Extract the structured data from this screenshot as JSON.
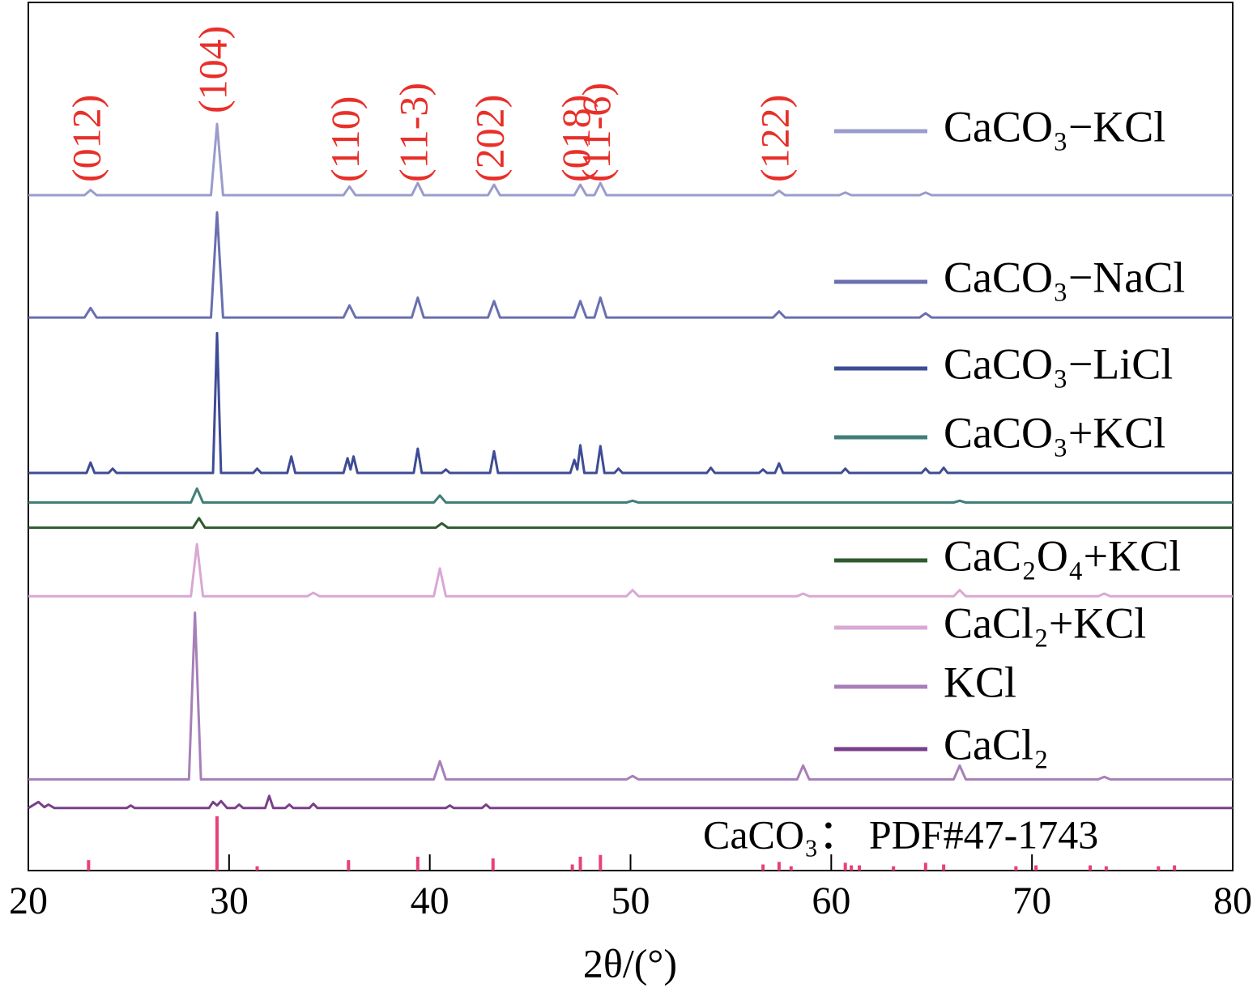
{
  "chart_data": {
    "type": "line",
    "x_label": "2θ/(°)",
    "xlim": [
      20,
      80
    ],
    "xticks": [
      20,
      30,
      40,
      50,
      60,
      70,
      80
    ],
    "ylim": [
      0,
      100
    ],
    "series": [
      {
        "name": "CaCO₃−KCl",
        "color": "#9a9ccc",
        "x": [
          20,
          22.8,
          23.1,
          23.4,
          29.1,
          29.4,
          29.7,
          35.7,
          36.0,
          36.3,
          39.1,
          39.4,
          39.7,
          42.9,
          43.2,
          43.5,
          47.2,
          47.5,
          47.8,
          48.2,
          48.5,
          48.8,
          57.1,
          57.4,
          57.7,
          60.4,
          60.7,
          61.0,
          64.4,
          64.7,
          65.0,
          80
        ],
        "values": [
          77.8,
          77.8,
          78.4,
          77.8,
          77.8,
          86.0,
          77.8,
          77.8,
          78.8,
          77.8,
          77.8,
          79.2,
          77.8,
          77.8,
          79.0,
          77.8,
          77.8,
          79.0,
          77.8,
          77.8,
          79.2,
          77.8,
          77.8,
          78.3,
          77.8,
          77.8,
          78.1,
          77.8,
          77.8,
          78.1,
          77.8,
          77.8
        ]
      },
      {
        "name": "CaCO₃−NaCl",
        "color": "#6a6fb0",
        "x": [
          20,
          22.8,
          23.1,
          23.4,
          29.1,
          29.4,
          29.7,
          35.7,
          36.0,
          36.3,
          39.1,
          39.4,
          39.7,
          42.9,
          43.2,
          43.5,
          47.2,
          47.5,
          47.8,
          48.2,
          48.5,
          48.8,
          57.1,
          57.4,
          57.7,
          64.4,
          64.7,
          65.0,
          80
        ],
        "values": [
          63.7,
          63.7,
          64.8,
          63.7,
          63.7,
          75.8,
          63.7,
          63.7,
          65.1,
          63.7,
          63.7,
          66.0,
          63.7,
          63.7,
          65.6,
          63.7,
          63.7,
          65.6,
          63.7,
          63.7,
          66.0,
          63.7,
          63.7,
          64.4,
          63.7,
          63.7,
          64.2,
          63.7,
          63.7
        ]
      },
      {
        "name": "CaCO₃−LiCl",
        "color": "#3f4c95",
        "x": [
          20,
          22.9,
          23.1,
          23.3,
          24.0,
          24.2,
          24.4,
          29.2,
          29.4,
          29.6,
          31.2,
          31.4,
          31.6,
          32.9,
          33.1,
          33.3,
          35.7,
          35.9,
          36.05,
          36.2,
          36.4,
          39.2,
          39.4,
          39.6,
          40.6,
          40.8,
          41.0,
          43.0,
          43.2,
          43.4,
          47.0,
          47.2,
          47.35,
          47.5,
          47.7,
          48.3,
          48.5,
          48.7,
          49.2,
          49.4,
          49.6,
          53.8,
          54.0,
          54.2,
          56.4,
          56.6,
          56.8,
          57.2,
          57.4,
          57.6,
          60.5,
          60.7,
          60.9,
          64.5,
          64.7,
          64.9,
          65.4,
          65.6,
          65.8,
          80
        ],
        "values": [
          45.8,
          45.8,
          47.0,
          45.8,
          45.8,
          46.3,
          45.8,
          45.8,
          61.9,
          45.8,
          45.8,
          46.3,
          45.8,
          45.8,
          47.7,
          45.8,
          45.8,
          47.5,
          46.2,
          47.7,
          45.8,
          45.8,
          48.6,
          45.8,
          45.8,
          46.2,
          45.8,
          45.8,
          48.3,
          45.8,
          45.8,
          47.3,
          46.2,
          49.0,
          45.8,
          45.8,
          48.9,
          45.8,
          45.8,
          46.3,
          45.8,
          45.8,
          46.4,
          45.8,
          45.8,
          46.2,
          45.8,
          45.8,
          46.9,
          45.8,
          45.8,
          46.3,
          45.8,
          45.8,
          46.3,
          45.8,
          45.8,
          46.4,
          45.8,
          45.8
        ]
      },
      {
        "name": "CaCO₃+KCl",
        "color": "#3f7f78",
        "x": [
          20,
          28.1,
          28.4,
          28.7,
          40.2,
          40.5,
          40.8,
          49.8,
          50.1,
          50.4,
          66.1,
          66.4,
          66.7,
          80
        ],
        "values": [
          42.4,
          42.4,
          44.0,
          42.4,
          42.4,
          43.2,
          42.4,
          42.4,
          42.6,
          42.4,
          42.4,
          42.6,
          42.4,
          42.4
        ]
      },
      {
        "name": "CaC₂O₄+KCl",
        "color": "#2e5a2e",
        "x": [
          20,
          28.2,
          28.5,
          28.8,
          40.3,
          40.6,
          40.9,
          80
        ],
        "values": [
          39.5,
          39.5,
          40.6,
          39.5,
          39.5,
          40.0,
          39.5,
          39.5
        ]
      },
      {
        "name": "CaCl₂+KCl",
        "color": "#d9a8d4",
        "x": [
          20,
          28.1,
          28.4,
          28.7,
          33.9,
          34.2,
          34.5,
          40.2,
          40.5,
          40.8,
          49.8,
          50.1,
          50.4,
          58.3,
          58.6,
          58.9,
          66.1,
          66.4,
          66.7,
          73.3,
          73.6,
          73.9,
          80
        ],
        "values": [
          31.6,
          31.6,
          37.6,
          31.6,
          31.6,
          32.0,
          31.6,
          31.6,
          34.8,
          31.6,
          31.6,
          32.3,
          31.6,
          31.6,
          31.9,
          31.6,
          31.6,
          32.3,
          31.6,
          31.6,
          31.9,
          31.6,
          31.6
        ]
      },
      {
        "name": "KCl",
        "color": "#a77fb8",
        "x": [
          20,
          28.0,
          28.3,
          28.6,
          40.2,
          40.5,
          40.8,
          49.8,
          50.1,
          50.4,
          58.3,
          58.6,
          58.9,
          66.1,
          66.4,
          66.7,
          73.3,
          73.6,
          73.9,
          80
        ],
        "values": [
          10.5,
          10.5,
          29.7,
          10.5,
          10.5,
          12.6,
          10.5,
          10.5,
          10.9,
          10.5,
          10.5,
          12.1,
          10.5,
          10.5,
          12.1,
          10.5,
          10.5,
          10.8,
          10.5,
          10.5
        ]
      },
      {
        "name": "CaCl₂",
        "color": "#7a3f8a",
        "x": [
          20,
          20.5,
          20.8,
          21.0,
          21.3,
          24.9,
          25.1,
          25.3,
          29.0,
          29.2,
          29.4,
          29.6,
          29.9,
          30.3,
          30.5,
          30.7,
          31.8,
          32.0,
          32.2,
          32.8,
          33.0,
          33.2,
          34.0,
          34.2,
          34.4,
          40.8,
          41.0,
          41.2,
          42.6,
          42.8,
          43.0,
          80
        ],
        "values": [
          7.2,
          7.9,
          7.3,
          7.6,
          7.2,
          7.2,
          7.5,
          7.2,
          7.2,
          7.9,
          7.5,
          8.0,
          7.2,
          7.2,
          7.6,
          7.2,
          7.2,
          8.6,
          7.2,
          7.2,
          7.6,
          7.2,
          7.2,
          7.7,
          7.2,
          7.2,
          7.5,
          7.2,
          7.2,
          7.6,
          7.2,
          7.2
        ]
      }
    ],
    "reference": {
      "name": "CaCO₃： PDF#47-1743",
      "color": "#e8407a",
      "x": [
        23.0,
        29.4,
        31.4,
        35.95,
        39.4,
        43.15,
        47.1,
        47.5,
        48.5,
        56.6,
        57.4,
        58.0,
        60.7,
        61.0,
        61.4,
        63.1,
        64.7,
        65.6,
        69.2,
        70.2,
        72.9,
        73.7,
        76.3,
        77.1
      ],
      "values": [
        1.2,
        6.25,
        0.5,
        1.2,
        1.6,
        1.4,
        0.7,
        1.6,
        1.8,
        0.7,
        1.0,
        0.5,
        0.9,
        0.6,
        0.6,
        0.5,
        0.9,
        0.7,
        0.5,
        0.6,
        0.6,
        0.5,
        0.5,
        0.6
      ]
    },
    "annotations": [
      {
        "text": "(012)",
        "x": 23.1
      },
      {
        "text": "(104)",
        "x": 29.4
      },
      {
        "text": "(110)",
        "x": 36.0
      },
      {
        "text": "(11-3)",
        "x": 39.4
      },
      {
        "text": "(202)",
        "x": 43.2
      },
      {
        "text": "(018)",
        "x": 47.5
      },
      {
        "text": "(11-6)",
        "x": 48.5
      },
      {
        "text": "(122)",
        "x": 57.4
      }
    ]
  }
}
